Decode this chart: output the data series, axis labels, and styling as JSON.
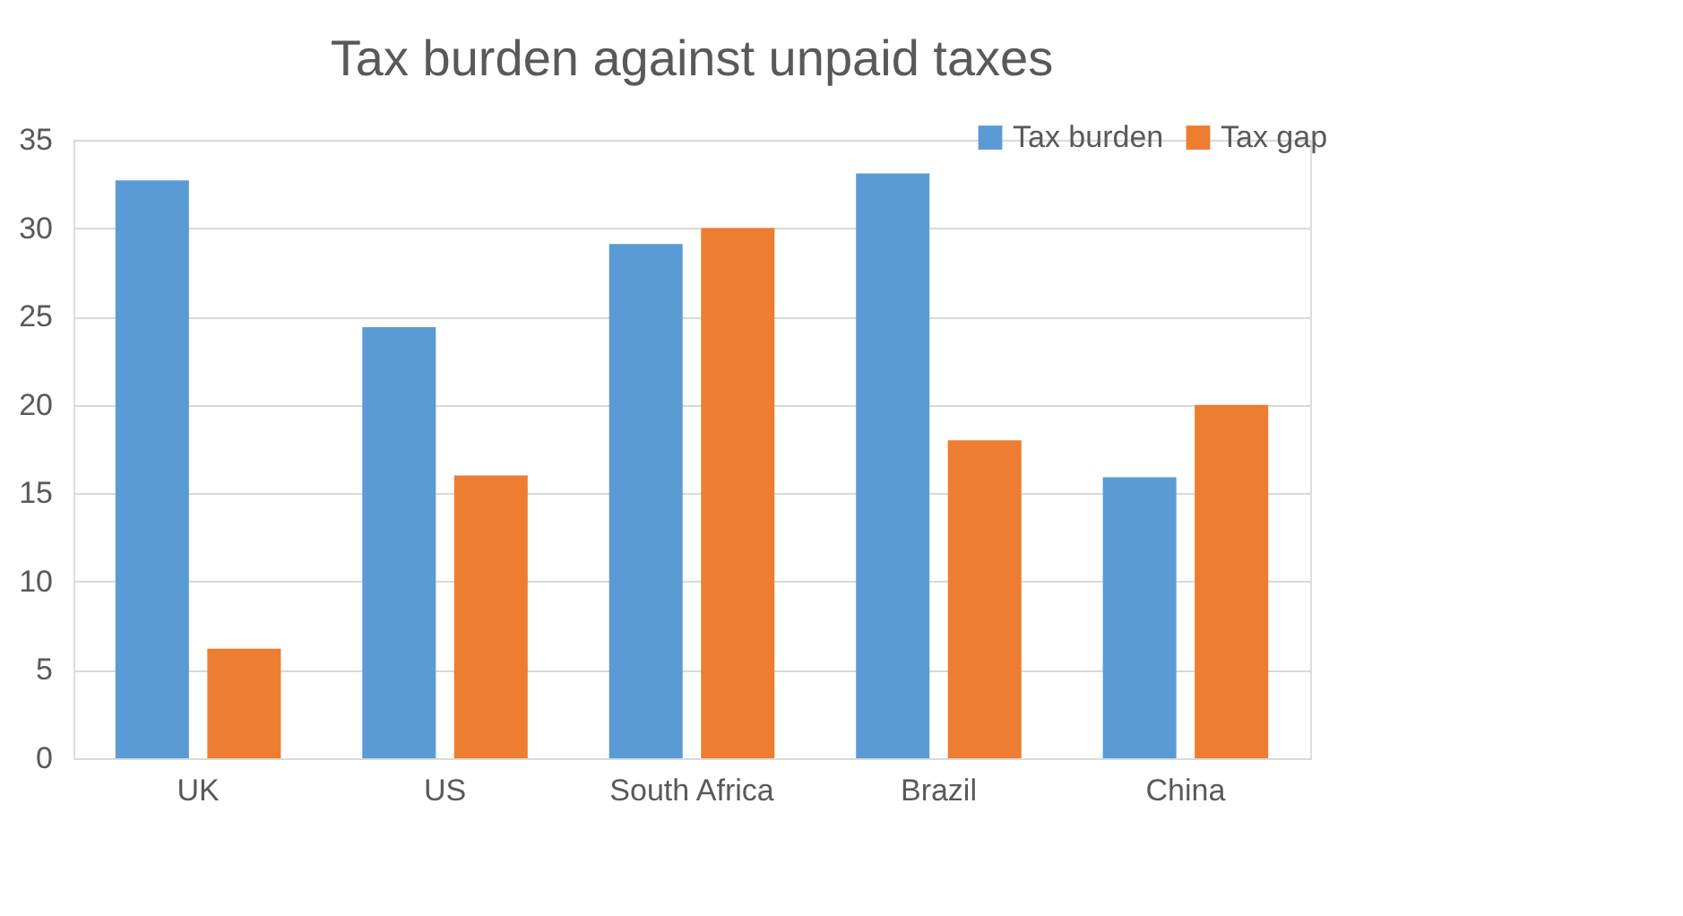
{
  "chart_data": {
    "type": "bar",
    "title": "Tax burden against unpaid taxes",
    "categories": [
      "UK",
      "US",
      "South Africa",
      "Brazil",
      "China"
    ],
    "series": [
      {
        "name": "Tax burden",
        "color": "#5b9bd5",
        "values": [
          32.7,
          24.4,
          29.1,
          33.1,
          15.9
        ]
      },
      {
        "name": "Tax gap",
        "color": "#ed7d31",
        "values": [
          6.2,
          16,
          30,
          18,
          20
        ]
      }
    ],
    "ylim": [
      0,
      35
    ],
    "yticks": [
      0,
      5,
      10,
      15,
      20,
      25,
      30,
      35
    ],
    "grid": "y",
    "legend": "top right"
  }
}
